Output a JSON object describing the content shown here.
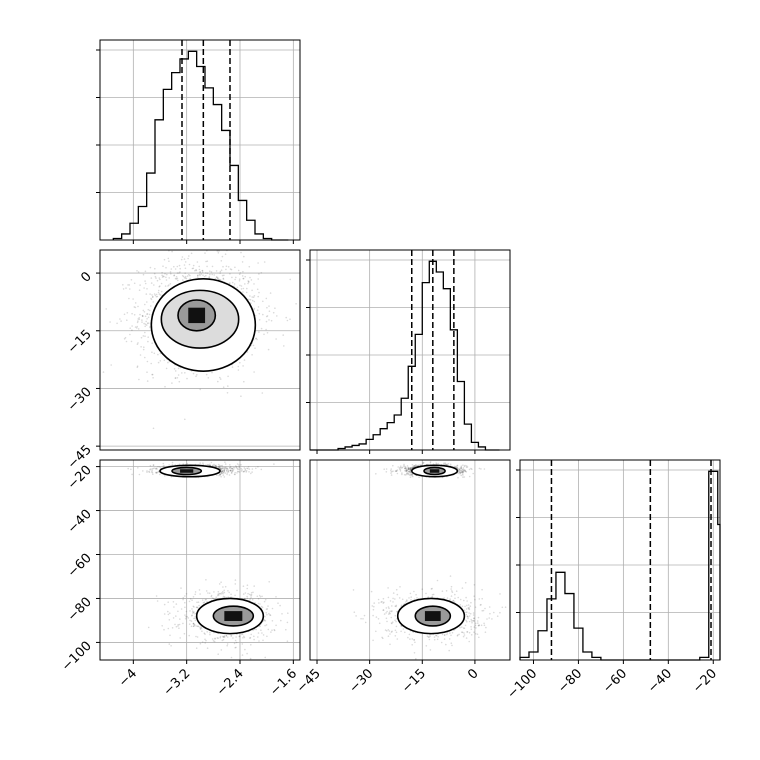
{
  "chart_data": {
    "type": "corner",
    "grid": true,
    "colors": {
      "line": "#000000",
      "grid": "#b0b0b0",
      "scatter": "#555555"
    },
    "panels": [
      {
        "id": "hist-0",
        "type": "histogram",
        "row": 0,
        "col": 0,
        "xlim": [
          -4.5,
          -1.5
        ],
        "x_edges": [
          -4.3,
          -4.175,
          -4.05,
          -3.925,
          -3.8,
          -3.675,
          -3.55,
          -3.425,
          -3.3,
          -3.175,
          -3.05,
          -2.925,
          -2.8,
          -2.675,
          -2.55,
          -2.425,
          -2.3,
          -2.175,
          -2.05,
          -1.925,
          -1.8,
          -1.675
        ],
        "counts": [
          1,
          4,
          11,
          22,
          44,
          79,
          99,
          110,
          119,
          124,
          114,
          100,
          89,
          72,
          49,
          26,
          13,
          4,
          1,
          0,
          0
        ],
        "quantiles": [
          -3.27,
          -2.95,
          -2.55
        ],
        "x_ticks": [
          -4.0,
          -3.2,
          -2.4,
          -1.6
        ]
      },
      {
        "id": "hist-1",
        "type": "histogram",
        "row": 1,
        "col": 1,
        "xlim": [
          -47,
          10
        ],
        "x_edges": [
          -47,
          -45,
          -43,
          -41,
          -39,
          -37,
          -35,
          -33,
          -31,
          -29,
          -27,
          -25,
          -23,
          -21,
          -19,
          -17,
          -15,
          -13,
          -11,
          -9,
          -7,
          -5,
          -3,
          -1,
          1,
          3,
          5,
          7
        ],
        "counts": [
          0,
          0,
          0,
          0,
          1,
          2,
          3,
          4,
          7,
          10,
          14,
          18,
          23,
          34,
          55,
          76,
          110,
          124,
          117,
          106,
          79,
          45,
          17,
          5,
          2,
          0,
          0
        ],
        "quantiles": [
          -18,
          -12,
          -6
        ],
        "x_ticks": [
          -45,
          -30,
          -15,
          0
        ]
      },
      {
        "id": "hist-2",
        "type": "histogram",
        "row": 2,
        "col": 2,
        "xlim": [
          -106,
          -17
        ],
        "x_edges": [
          -106,
          -102,
          -98,
          -94,
          -90,
          -86,
          -82,
          -78,
          -74,
          -70,
          -66,
          -62,
          -58,
          -54,
          -50,
          -46,
          -42,
          -38,
          -34,
          -30,
          -26,
          -22,
          -18,
          -17
        ],
        "counts": [
          1,
          3,
          11,
          23,
          33,
          25,
          12,
          3,
          1,
          0,
          0,
          0,
          0,
          0,
          0,
          0,
          0,
          0,
          0,
          0,
          1,
          71,
          51
        ],
        "quantiles": [
          -92,
          -48,
          -21
        ],
        "x_ticks": [
          -100,
          -80,
          -60,
          -40,
          -20
        ]
      },
      {
        "id": "scatter-1-0",
        "type": "scatter_density",
        "row": 1,
        "col": 0,
        "xlim": [
          -4.5,
          -1.5
        ],
        "ylim": [
          -46,
          6
        ],
        "modes": [
          {
            "x": -3.0,
            "y": -11.0,
            "sx": 0.45,
            "sy": 7.0,
            "weight": 1.0
          }
        ],
        "contours": [
          {
            "level": "inner",
            "cx": -3.05,
            "cy": -11.0,
            "rx": 0.28,
            "ry": 4.0
          },
          {
            "level": "middle",
            "cx": -3.0,
            "cy": -12.0,
            "rx": 0.58,
            "ry": 7.5
          },
          {
            "level": "outer",
            "cx": -2.95,
            "cy": -13.5,
            "rx": 0.78,
            "ry": 12.0
          }
        ],
        "y_ticks": [
          0,
          -15,
          -30,
          -45
        ]
      },
      {
        "id": "scatter-2-0",
        "type": "scatter_density",
        "row": 2,
        "col": 0,
        "xlim": [
          -4.5,
          -1.5
        ],
        "ylim": [
          -108,
          -17
        ],
        "modes": [
          {
            "x": -3.05,
            "y": -21.5,
            "sx": 0.32,
            "sy": 1.2,
            "weight": 0.55
          },
          {
            "x": -2.6,
            "y": -88,
            "sx": 0.35,
            "sy": 5.5,
            "weight": 0.45
          }
        ],
        "contours": [
          {
            "level": "inner",
            "cx": -3.2,
            "cy": -22.0,
            "rx": 0.22,
            "ry": 1.6
          },
          {
            "level": "outer",
            "cx": -3.15,
            "cy": -22.0,
            "rx": 0.45,
            "ry": 2.6
          },
          {
            "level": "inner",
            "cx": -2.5,
            "cy": -88.0,
            "rx": 0.3,
            "ry": 4.5
          },
          {
            "level": "outer",
            "cx": -2.55,
            "cy": -88.0,
            "rx": 0.5,
            "ry": 8.0
          }
        ],
        "y_ticks": [
          -20,
          -40,
          -60,
          -80,
          -100
        ],
        "x_ticks": [
          -4.0,
          -3.2,
          -2.4,
          -1.6
        ]
      },
      {
        "id": "scatter-2-1",
        "type": "scatter_density",
        "row": 2,
        "col": 1,
        "xlim": [
          -47,
          10
        ],
        "ylim": [
          -108,
          -17
        ],
        "modes": [
          {
            "x": -12,
            "y": -21.5,
            "sx": 4.5,
            "sy": 1.2,
            "weight": 0.55
          },
          {
            "x": -12,
            "y": -88,
            "sx": 7.0,
            "sy": 5.5,
            "weight": 0.45
          }
        ],
        "contours": [
          {
            "level": "inner",
            "cx": -11.5,
            "cy": -22.0,
            "rx": 3.0,
            "ry": 1.6
          },
          {
            "level": "outer",
            "cx": -11.5,
            "cy": -22.0,
            "rx": 6.5,
            "ry": 2.6
          },
          {
            "level": "inner",
            "cx": -12.0,
            "cy": -88.0,
            "rx": 5.0,
            "ry": 4.5
          },
          {
            "level": "outer",
            "cx": -12.5,
            "cy": -88.0,
            "rx": 9.5,
            "ry": 8.0
          }
        ],
        "x_ticks": [
          -45,
          -30,
          -15,
          0
        ]
      }
    ]
  }
}
